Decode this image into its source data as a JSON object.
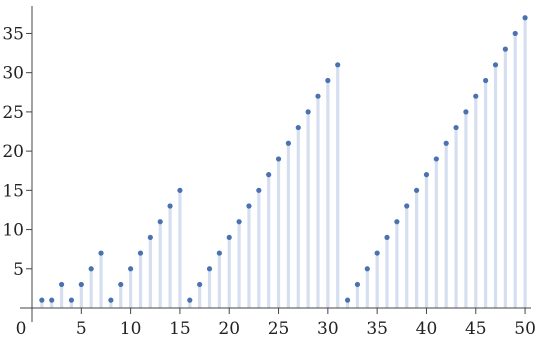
{
  "chart_data": {
    "type": "scatter",
    "style": "discrete-stem",
    "title": "",
    "xlabel": "",
    "ylabel": "",
    "xlim": [
      0,
      50.6
    ],
    "ylim": [
      0,
      38.5
    ],
    "x_ticks": [
      0,
      5,
      10,
      15,
      20,
      25,
      30,
      35,
      40,
      45,
      50
    ],
    "y_ticks": [
      5,
      10,
      15,
      20,
      25,
      30,
      35
    ],
    "grid": false,
    "legend": "none",
    "colors": {
      "point": "#4a72b0",
      "stem": "#d6dff0",
      "axis": "#444444"
    },
    "series": [
      {
        "x": [
          1,
          2,
          3,
          4,
          5,
          6,
          7,
          8,
          9,
          10,
          11,
          12,
          13,
          14,
          15,
          16,
          17,
          18,
          19,
          20,
          21,
          22,
          23,
          24,
          25,
          26,
          27,
          28,
          29,
          30,
          31,
          32,
          33,
          34,
          35,
          36,
          37,
          38,
          39,
          40,
          41,
          42,
          43,
          44,
          45,
          46,
          47,
          48,
          49,
          50
        ],
        "y": [
          1,
          1,
          3,
          1,
          3,
          5,
          7,
          1,
          3,
          5,
          7,
          9,
          11,
          13,
          15,
          1,
          3,
          5,
          7,
          9,
          11,
          13,
          15,
          17,
          19,
          21,
          23,
          25,
          27,
          29,
          31,
          1,
          3,
          5,
          7,
          9,
          11,
          13,
          15,
          17,
          19,
          21,
          23,
          25,
          27,
          29,
          31,
          33,
          35,
          37
        ]
      }
    ]
  }
}
